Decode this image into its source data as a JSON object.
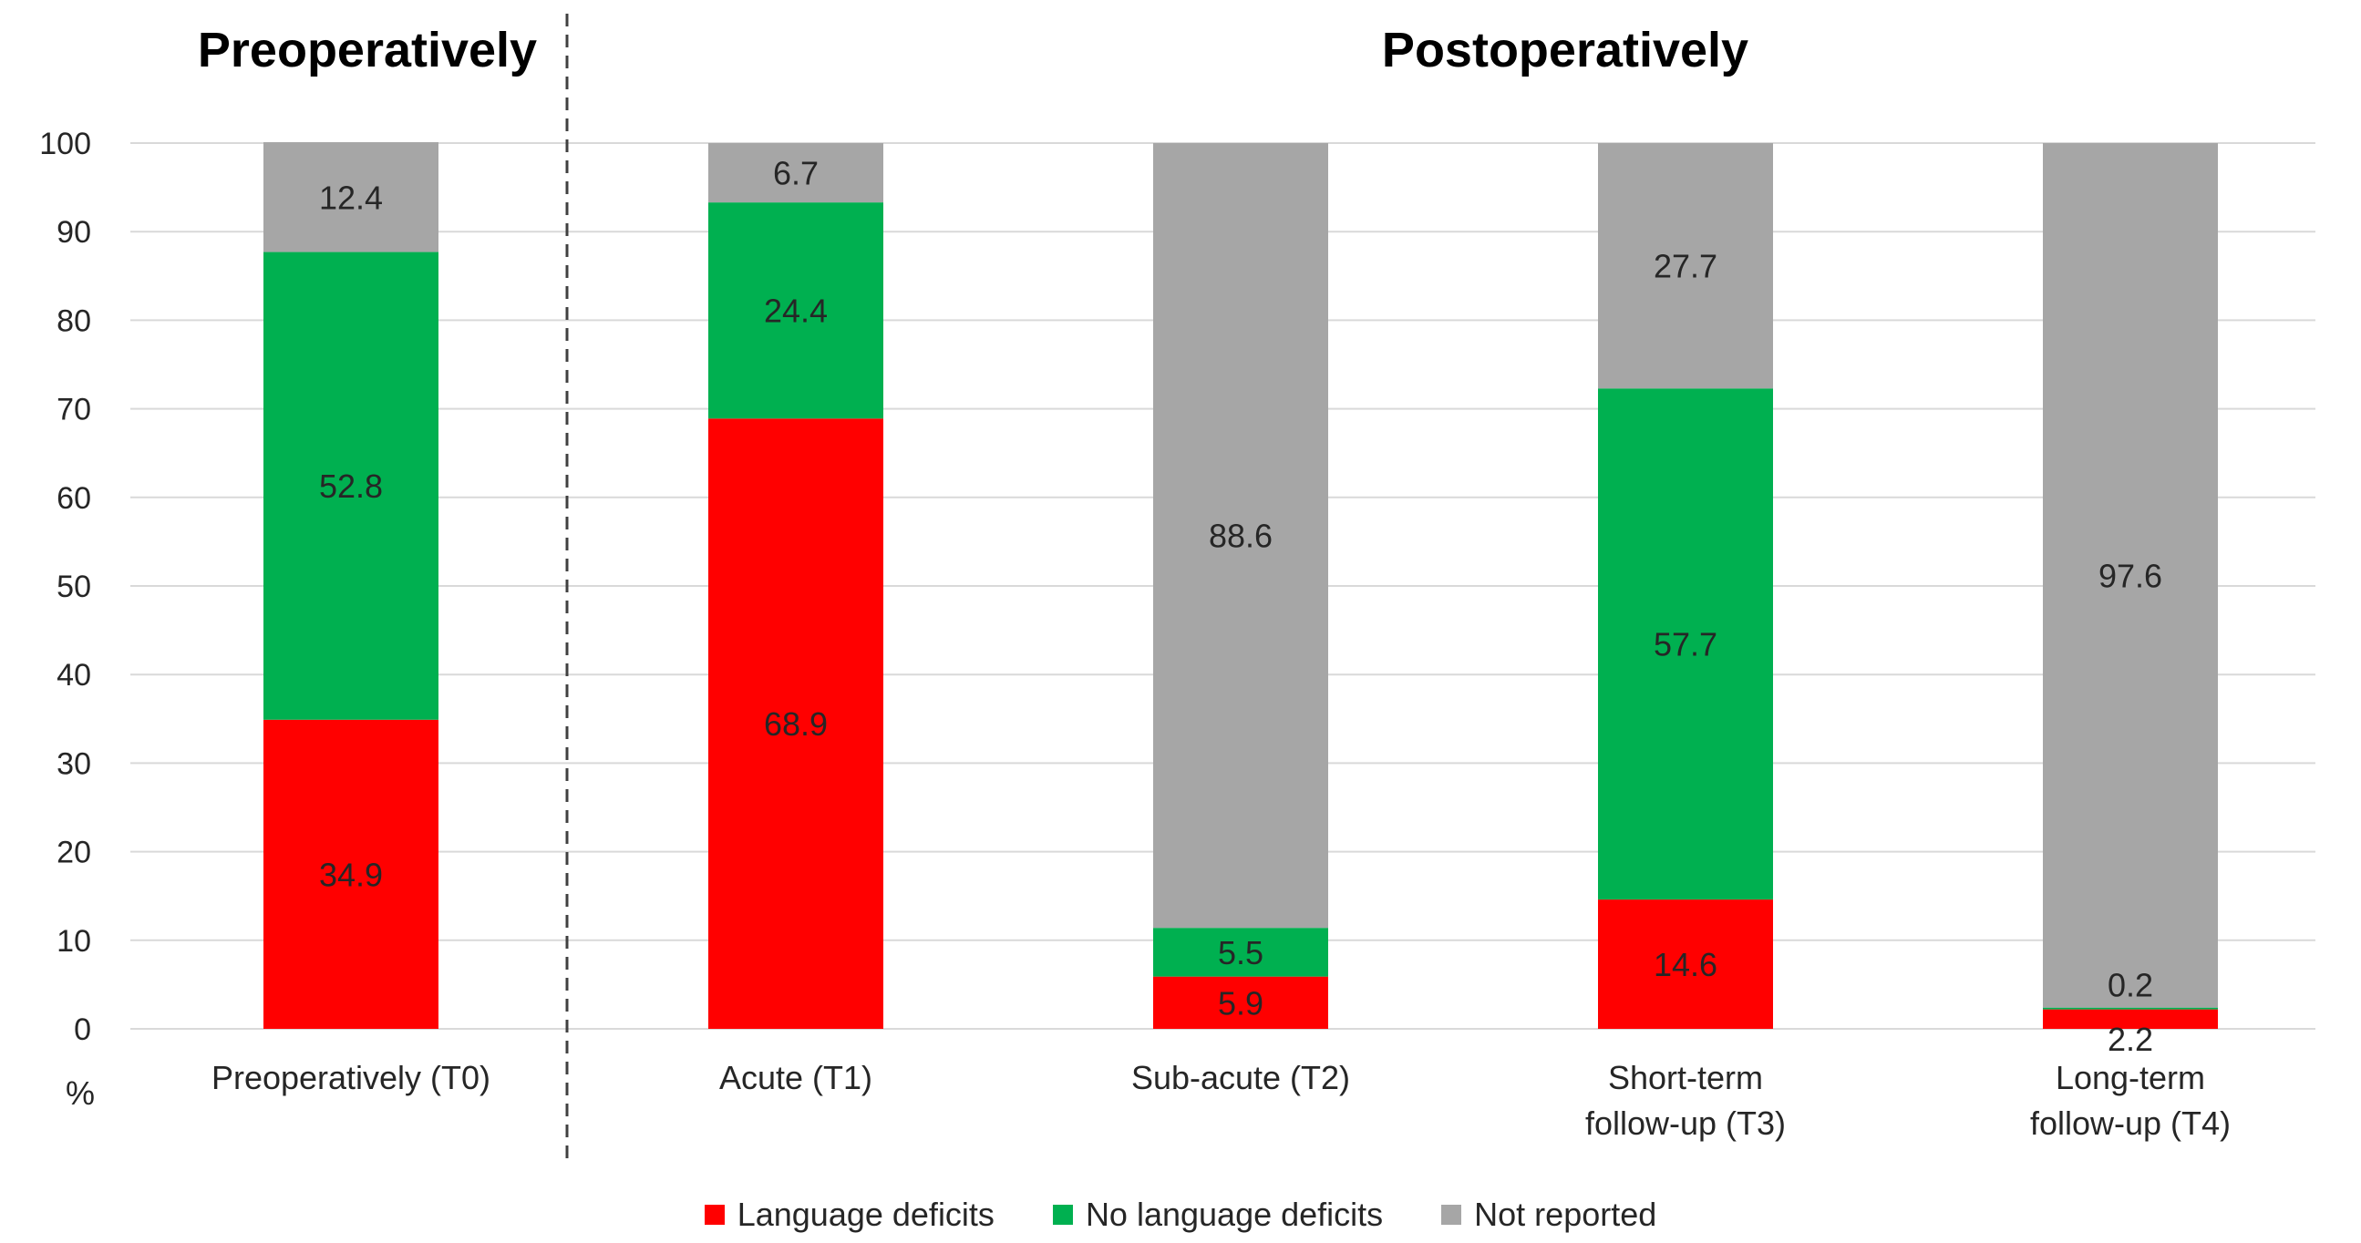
{
  "chart_data": {
    "type": "bar",
    "stacked": true,
    "section_headers": [
      "Preoperatively",
      "Postoperatively"
    ],
    "ylabel": "%",
    "ylim": [
      0,
      100
    ],
    "yticks": [
      0,
      10,
      20,
      30,
      40,
      50,
      60,
      70,
      80,
      90,
      100
    ],
    "grid": true,
    "legend_position": "bottom",
    "categories": [
      [
        "Preoperatively (T0)"
      ],
      [
        "Acute (T1)"
      ],
      [
        "Sub-acute (T2)"
      ],
      [
        "Short-term",
        "follow-up (T3)"
      ],
      [
        "Long-term",
        "follow-up (T4)"
      ]
    ],
    "series": [
      {
        "name": "Language deficits",
        "color": "#ff0000",
        "values": [
          34.9,
          68.9,
          5.9,
          14.6,
          2.2
        ]
      },
      {
        "name": "No language deficits",
        "color": "#00b050",
        "values": [
          52.8,
          24.4,
          5.5,
          57.7,
          0.2
        ]
      },
      {
        "name": "Not reported",
        "color": "#a6a6a6",
        "values": [
          12.4,
          6.7,
          88.6,
          27.7,
          97.6
        ]
      }
    ]
  }
}
